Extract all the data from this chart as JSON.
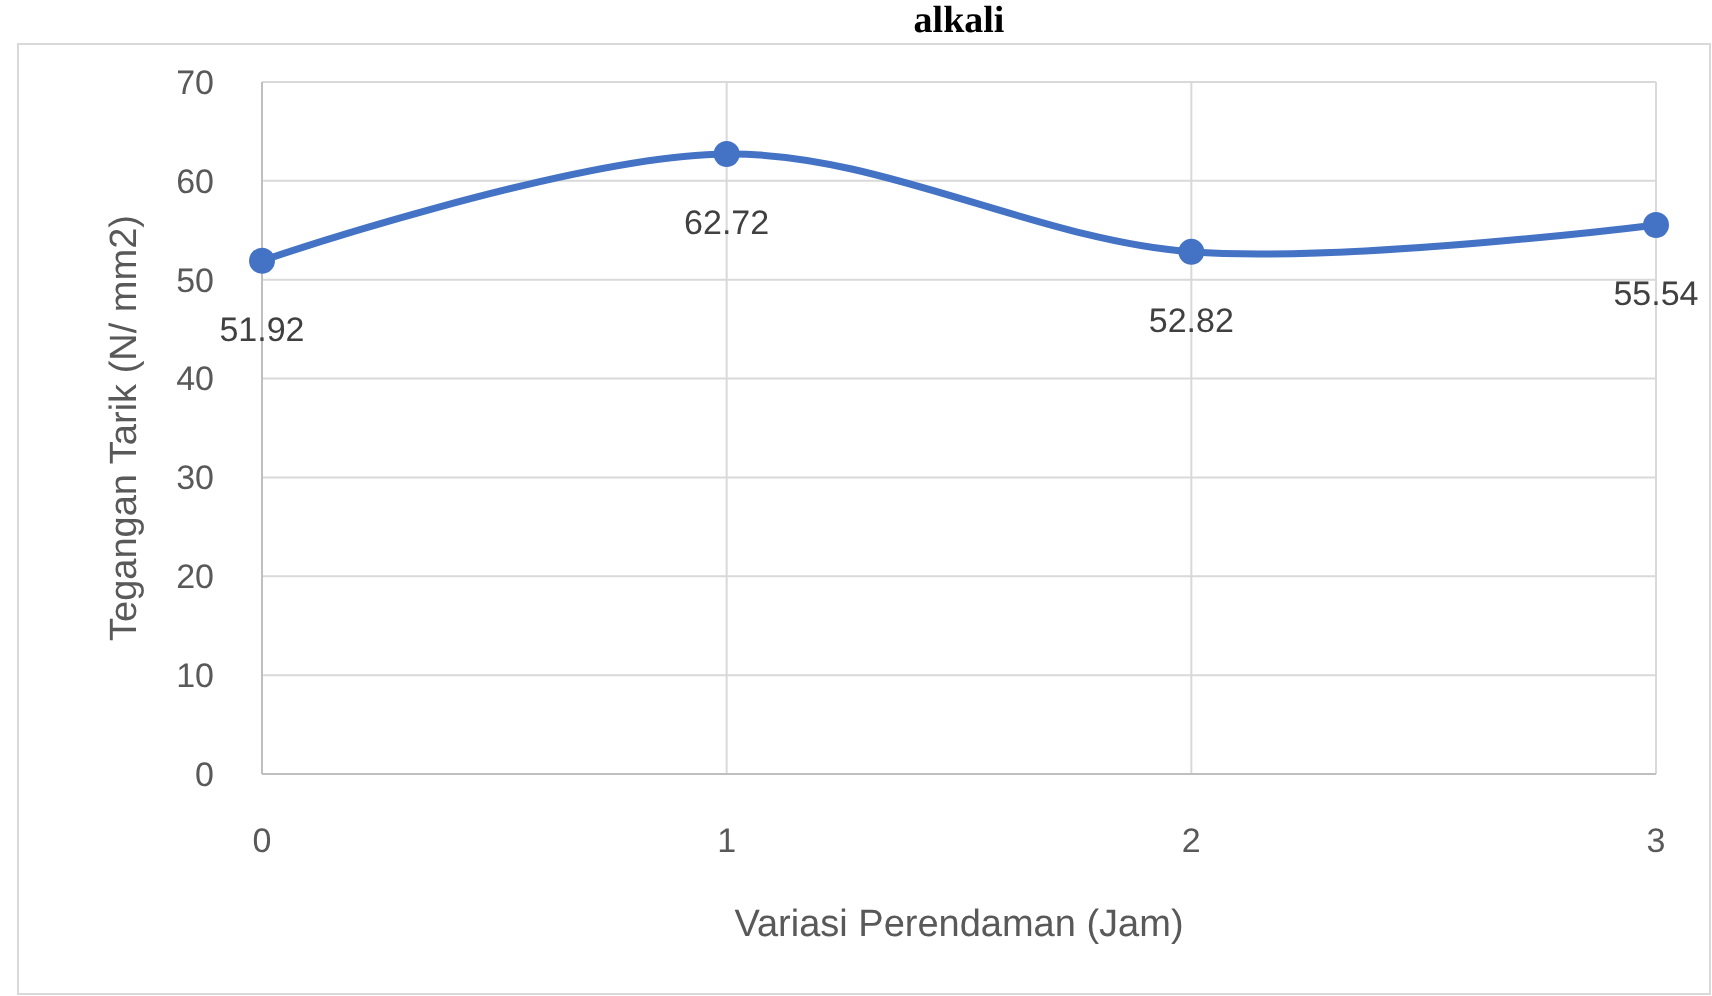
{
  "chart_data": {
    "type": "line",
    "title": "alkali",
    "xlabel": "Variasi Perendaman (Jam)",
    "ylabel": "Tegangan Tarik (N/ mm2)",
    "x": [
      0,
      1,
      2,
      3
    ],
    "series": [
      {
        "color": "#4472c4",
        "values": [
          51.92,
          62.72,
          52.82,
          55.54
        ]
      }
    ],
    "xlim": [
      0,
      3
    ],
    "xticks": [
      0,
      1,
      2,
      3
    ],
    "ylim": [
      0,
      70
    ],
    "yticks": [
      0,
      10,
      20,
      30,
      40,
      50,
      60,
      70
    ],
    "grid": true,
    "marker": "circle",
    "data_labels": true
  }
}
